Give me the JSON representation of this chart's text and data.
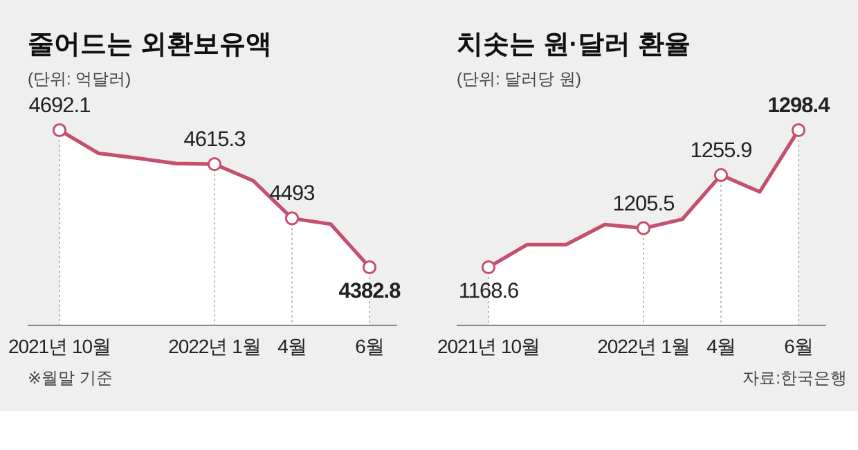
{
  "chart_data": [
    {
      "type": "area",
      "title": "줄어드는 외환보유액",
      "subtitle": "(단위: 억달러)",
      "categories": [
        "2021년 10월",
        null,
        null,
        null,
        "2022년 1월",
        null,
        "4월",
        null,
        "6월"
      ],
      "series": [
        {
          "color": "#c4506e",
          "values": [
            4692.1,
            4640,
            4629,
            4617,
            4615.3,
            4578,
            4493,
            4480,
            4382.8
          ],
          "value_labels": [
            "4692.1",
            null,
            null,
            null,
            "4615.3",
            null,
            "4493",
            null,
            "4382.8"
          ]
        }
      ],
      "tick_labels": "x",
      "annotations": [
        "※월말 기준"
      ]
    },
    {
      "type": "area",
      "title": "치솟는 원·달러 환율",
      "subtitle": "(단위: 달러당 원)",
      "categories": [
        "2021년 10월",
        null,
        null,
        null,
        "2022년 1월",
        null,
        "4월",
        null,
        "6월"
      ],
      "series": [
        {
          "color": "#c4506e",
          "values": [
            1168.6,
            1190,
            1190,
            1209,
            1205.5,
            1214,
            1255.9,
            1240,
            1298.4
          ],
          "value_labels": [
            "1168.6",
            null,
            null,
            null,
            "1205.5",
            null,
            "1255.9",
            null,
            "1298.4"
          ]
        }
      ],
      "tick_labels": "x",
      "annotations": [
        "자료:한국은행"
      ]
    }
  ]
}
